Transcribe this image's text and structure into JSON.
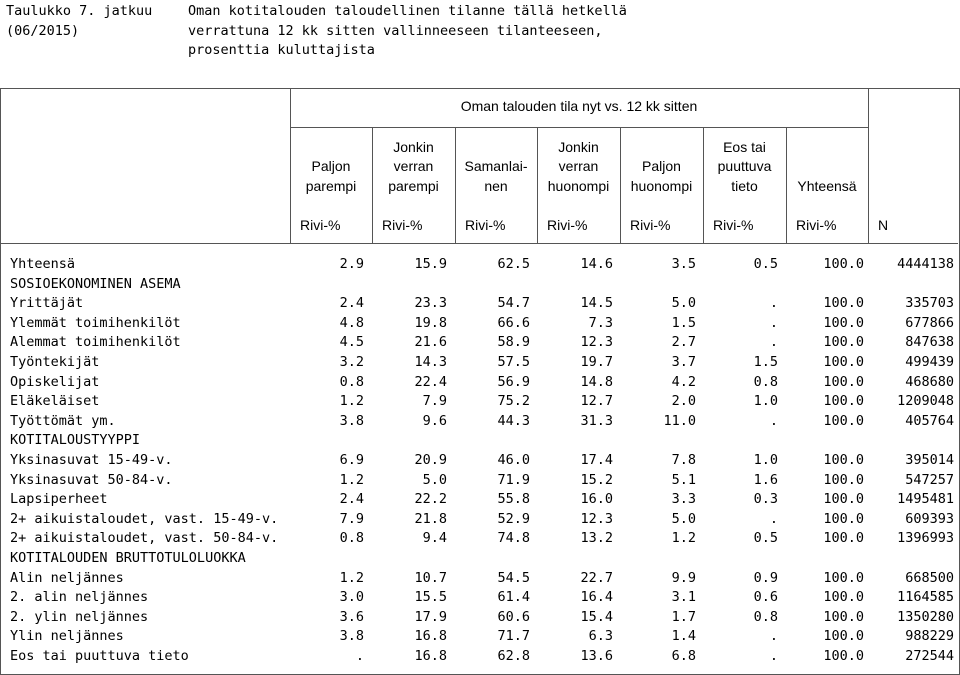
{
  "header": {
    "table_ref": "Taulukko 7. jatkuu\n(06/2015)",
    "title": "Oman kotitalouden taloudellinen tilanne tällä hetkellä\nverrattuna 12 kk sitten vallinneeseen tilanteeseen,\nprosenttia kuluttajista"
  },
  "table": {
    "group_header": "Oman talouden tila nyt vs. 12 kk sitten",
    "columns": [
      {
        "label": "Paljon\nparempi",
        "unit": "Rivi-%"
      },
      {
        "label": "Jonkin\nverran\nparempi",
        "unit": "Rivi-%"
      },
      {
        "label": "Samanlai-\nnen",
        "unit": "Rivi-%"
      },
      {
        "label": "Jonkin\nverran\nhuonompi",
        "unit": "Rivi-%"
      },
      {
        "label": "Paljon\nhuonompi",
        "unit": "Rivi-%"
      },
      {
        "label": "Eos tai\npuuttuva\ntieto",
        "unit": "Rivi-%"
      },
      {
        "label": "Yhteensä",
        "unit": "Rivi-%"
      },
      {
        "label": "",
        "unit": "N"
      }
    ],
    "rows": [
      {
        "label": "Yhteensä",
        "values": [
          "2.9",
          "15.9",
          "62.5",
          "14.6",
          "3.5",
          "0.5",
          "100.0",
          "4444138"
        ]
      },
      {
        "label": "SOSIOEKONOMINEN ASEMA",
        "values": []
      },
      {
        "label": "Yrittäjät",
        "values": [
          "2.4",
          "23.3",
          "54.7",
          "14.5",
          "5.0",
          ".",
          "100.0",
          "335703"
        ]
      },
      {
        "label": "Ylemmät toimihenkilöt",
        "values": [
          "4.8",
          "19.8",
          "66.6",
          "7.3",
          "1.5",
          ".",
          "100.0",
          "677866"
        ]
      },
      {
        "label": "Alemmat toimihenkilöt",
        "values": [
          "4.5",
          "21.6",
          "58.9",
          "12.3",
          "2.7",
          ".",
          "100.0",
          "847638"
        ]
      },
      {
        "label": "Työntekijät",
        "values": [
          "3.2",
          "14.3",
          "57.5",
          "19.7",
          "3.7",
          "1.5",
          "100.0",
          "499439"
        ]
      },
      {
        "label": "Opiskelijat",
        "values": [
          "0.8",
          "22.4",
          "56.9",
          "14.8",
          "4.2",
          "0.8",
          "100.0",
          "468680"
        ]
      },
      {
        "label": "Eläkeläiset",
        "values": [
          "1.2",
          "7.9",
          "75.2",
          "12.7",
          "2.0",
          "1.0",
          "100.0",
          "1209048"
        ]
      },
      {
        "label": "Työttömät ym.",
        "values": [
          "3.8",
          "9.6",
          "44.3",
          "31.3",
          "11.0",
          ".",
          "100.0",
          "405764"
        ]
      },
      {
        "label": "KOTITALOUSTYYPPI",
        "values": []
      },
      {
        "label": "Yksinasuvat 15-49-v.",
        "values": [
          "6.9",
          "20.9",
          "46.0",
          "17.4",
          "7.8",
          "1.0",
          "100.0",
          "395014"
        ]
      },
      {
        "label": "Yksinasuvat 50-84-v.",
        "values": [
          "1.2",
          "5.0",
          "71.9",
          "15.2",
          "5.1",
          "1.6",
          "100.0",
          "547257"
        ]
      },
      {
        "label": "Lapsiperheet",
        "values": [
          "2.4",
          "22.2",
          "55.8",
          "16.0",
          "3.3",
          "0.3",
          "100.0",
          "1495481"
        ]
      },
      {
        "label": "2+ aikuistaloudet, vast. 15-49-v.",
        "values": [
          "7.9",
          "21.8",
          "52.9",
          "12.3",
          "5.0",
          ".",
          "100.0",
          "609393"
        ]
      },
      {
        "label": "2+ aikuistaloudet, vast. 50-84-v.",
        "values": [
          "0.8",
          "9.4",
          "74.8",
          "13.2",
          "1.2",
          "0.5",
          "100.0",
          "1396993"
        ]
      },
      {
        "label": "KOTITALOUDEN BRUTTOTULOLUOKKA",
        "values": []
      },
      {
        "label": "Alin neljännes",
        "values": [
          "1.2",
          "10.7",
          "54.5",
          "22.7",
          "9.9",
          "0.9",
          "100.0",
          "668500"
        ]
      },
      {
        "label": "2. alin neljännes",
        "values": [
          "3.0",
          "15.5",
          "61.4",
          "16.4",
          "3.1",
          "0.6",
          "100.0",
          "1164585"
        ]
      },
      {
        "label": "2. ylin neljännes",
        "values": [
          "3.6",
          "17.9",
          "60.6",
          "15.4",
          "1.7",
          "0.8",
          "100.0",
          "1350280"
        ]
      },
      {
        "label": "Ylin neljännes",
        "values": [
          "3.8",
          "16.8",
          "71.7",
          "6.3",
          "1.4",
          ".",
          "100.0",
          "988229"
        ]
      },
      {
        "label": "Eos tai puuttuva tieto",
        "values": [
          ".",
          "16.8",
          "62.8",
          "13.6",
          "6.8",
          ".",
          "100.0",
          "272544"
        ]
      }
    ]
  }
}
